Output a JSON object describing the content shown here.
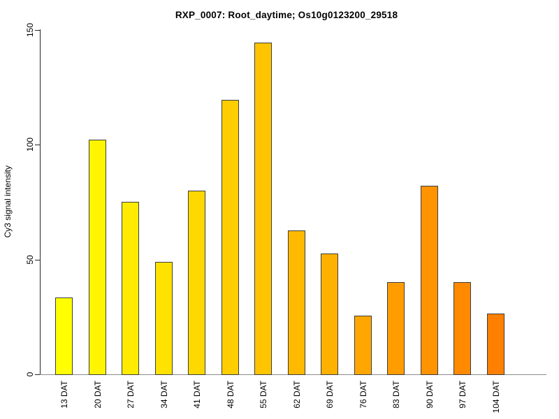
{
  "chart_data": {
    "type": "bar",
    "title": "RXP_0007: Root_daytime; Os10g0123200_29518",
    "xlabel": "",
    "ylabel": "Cy3 signal intensity",
    "categories": [
      "13 DAT",
      "20 DAT",
      "27 DAT",
      "34 DAT",
      "41 DAT",
      "48 DAT",
      "55 DAT",
      "62 DAT",
      "69 DAT",
      "76 DAT",
      "83 DAT",
      "90 DAT",
      "97 DAT",
      "104 DAT"
    ],
    "values": [
      33.5,
      102,
      75,
      49,
      80,
      119.5,
      144.5,
      62.5,
      52.5,
      25.5,
      40,
      82,
      40,
      26.5
    ],
    "bar_colors": [
      "#FFFF00",
      "#FFF500",
      "#FFEB00",
      "#FFE200",
      "#FFD800",
      "#FFCE00",
      "#FFC400",
      "#FFBA00",
      "#FFB100",
      "#FFA700",
      "#FF9D00",
      "#FF9300",
      "#FF8A00",
      "#FF8000"
    ],
    "bar_border_color": "#3d3d3d",
    "axis_color": "#262626",
    "baseline_color": "#8c8c8c",
    "text_color": "#000000",
    "background_color": "#ffffff",
    "ylim": [
      0,
      150
    ],
    "yticks": [
      0,
      50,
      100,
      150
    ],
    "grid": false,
    "legend": null
  }
}
